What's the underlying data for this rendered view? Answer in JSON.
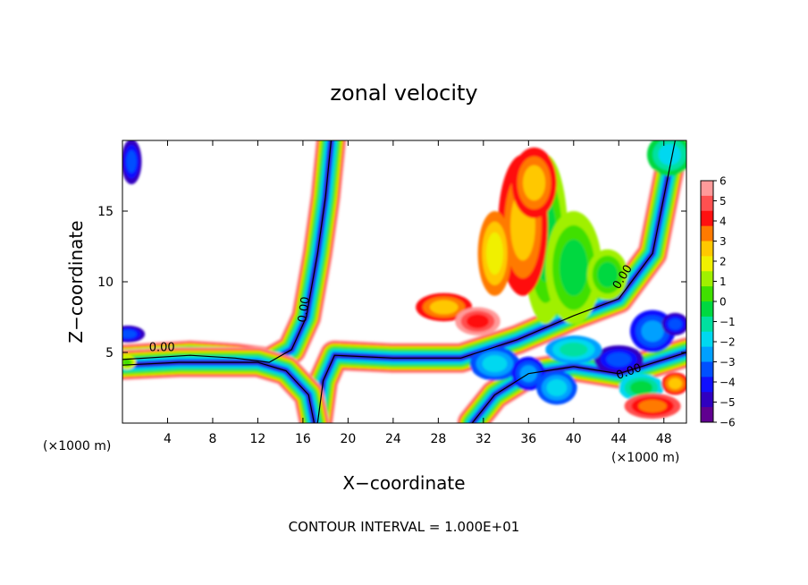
{
  "chart_data": {
    "type": "heatmap",
    "title": "zonal velocity",
    "xlabel": "X−coordinate",
    "ylabel": "Z−coordinate",
    "x_unit_left": "(×1000 m)",
    "x_unit_right": "(×1000 m)",
    "footer": "CONTOUR INTERVAL = 1.000E+01",
    "xlim": [
      0,
      50
    ],
    "ylim": [
      0,
      20
    ],
    "x_ticks": [
      4,
      8,
      12,
      16,
      20,
      24,
      28,
      32,
      36,
      40,
      44,
      48
    ],
    "x_tick_labels": [
      "4",
      "8",
      "12",
      "16",
      "20",
      "24",
      "28",
      "32",
      "36",
      "40",
      "44",
      "48"
    ],
    "y_ticks": [
      5,
      10,
      15
    ],
    "y_tick_labels": [
      "5",
      "10",
      "15"
    ],
    "grid": false,
    "colorbar": {
      "min": -6,
      "max": 6,
      "ticks": [
        6,
        5,
        4,
        3,
        2,
        1,
        0,
        -1,
        -2,
        -3,
        -4,
        -5,
        -6
      ],
      "tick_labels": [
        "6",
        "5",
        "4",
        "3",
        "2",
        "1",
        "0",
        "−1",
        "−2",
        "−3",
        "−4",
        "−5",
        "−6"
      ],
      "colors": [
        "#ff9a9a",
        "#ff5050",
        "#ff1010",
        "#ff7a00",
        "#ffc800",
        "#f0f000",
        "#a0f000",
        "#40e000",
        "#00d840",
        "#00e0a0",
        "#00d8f0",
        "#00a0ff",
        "#0050ff",
        "#1010ff",
        "#3000c0",
        "#600090"
      ]
    },
    "contour_labels": [
      "0.00",
      "0.00",
      "0.00",
      "0.00"
    ],
    "features": [
      {
        "type": "band",
        "value": 0,
        "path": [
          [
            0,
            4.5
          ],
          [
            6,
            4.8
          ],
          [
            10,
            4.6
          ],
          [
            13,
            4.3
          ],
          [
            15,
            5.2
          ],
          [
            16.3,
            7.5
          ],
          [
            17.3,
            12
          ],
          [
            18,
            16
          ],
          [
            18.5,
            20
          ]
        ]
      },
      {
        "type": "band",
        "value": 0,
        "path": [
          [
            17.3,
            0
          ],
          [
            17.8,
            3
          ],
          [
            18.8,
            4.8
          ],
          [
            24,
            4.6
          ],
          [
            30,
            4.6
          ],
          [
            35,
            5.9
          ],
          [
            40,
            7.6
          ],
          [
            44,
            8.8
          ],
          [
            47,
            12
          ],
          [
            49,
            20
          ]
        ]
      },
      {
        "type": "band",
        "value": 0,
        "path": [
          [
            0,
            4.1
          ],
          [
            5,
            4.3
          ],
          [
            12,
            4.3
          ],
          [
            14.5,
            3.7
          ],
          [
            16.5,
            2
          ],
          [
            17,
            0
          ]
        ]
      },
      {
        "type": "band",
        "value": 0,
        "path": [
          [
            31,
            0
          ],
          [
            33,
            2
          ],
          [
            36,
            3.5
          ],
          [
            40,
            4
          ],
          [
            44,
            3.5
          ],
          [
            48,
            4.5
          ],
          [
            50,
            5
          ]
        ]
      },
      {
        "type": "blob",
        "value": 0,
        "cx": 48.5,
        "cz": 19,
        "rx": 2.0,
        "rz": 1.5
      },
      {
        "type": "blob",
        "value": 1,
        "cx": 37.5,
        "cz": 13,
        "rx": 2.0,
        "rz": 6
      },
      {
        "type": "blob",
        "value": 1.5,
        "cx": 40,
        "cz": 11,
        "rx": 2.5,
        "rz": 4
      },
      {
        "type": "blob",
        "value": 4,
        "cx": 35.5,
        "cz": 14,
        "rx": 2.2,
        "rz": 5
      },
      {
        "type": "blob",
        "value": 3.5,
        "cx": 33,
        "cz": 12,
        "rx": 1.5,
        "rz": 3
      },
      {
        "type": "blob",
        "value": 4,
        "cx": 28.5,
        "cz": 8.2,
        "rx": 2.5,
        "rz": 1.0
      },
      {
        "type": "blob",
        "value": 4,
        "cx": 36.5,
        "cz": 17,
        "rx": 2.0,
        "rz": 2.5
      },
      {
        "type": "blob",
        "value": 5.5,
        "cx": 31.5,
        "cz": 7.2,
        "rx": 2.0,
        "rz": 1.0
      },
      {
        "type": "blob",
        "value": 1.5,
        "cx": 43,
        "cz": 10.5,
        "rx": 1.8,
        "rz": 1.8
      },
      {
        "type": "blob",
        "value": -3,
        "cx": 33,
        "cz": 4.2,
        "rx": 2.2,
        "rz": 1.2
      },
      {
        "type": "blob",
        "value": -4,
        "cx": 36,
        "cz": 3.5,
        "rx": 1.5,
        "rz": 1.2
      },
      {
        "type": "blob",
        "value": -5,
        "cx": 44,
        "cz": 4.5,
        "rx": 2.2,
        "rz": 1.0
      },
      {
        "type": "blob",
        "value": -2.5,
        "cx": 40,
        "cz": 5.2,
        "rx": 2.5,
        "rz": 1.0
      },
      {
        "type": "blob",
        "value": -3,
        "cx": 38.5,
        "cz": 2.5,
        "rx": 1.8,
        "rz": 1.2
      },
      {
        "type": "blob",
        "value": -4,
        "cx": 47,
        "cz": 6.5,
        "rx": 2.0,
        "rz": 1.5
      },
      {
        "type": "blob",
        "value": -5,
        "cx": 49,
        "cz": 7,
        "rx": 1.2,
        "rz": 0.8
      },
      {
        "type": "blob",
        "value": -1.5,
        "cx": 46,
        "cz": 2.5,
        "rx": 2.0,
        "rz": 1.0
      },
      {
        "type": "blob",
        "value": 5,
        "cx": 47,
        "cz": 1.2,
        "rx": 2.5,
        "rz": 0.9
      },
      {
        "type": "blob",
        "value": 4,
        "cx": 49,
        "cz": 2.8,
        "rx": 1.2,
        "rz": 0.8
      },
      {
        "type": "blob",
        "value": -5,
        "cx": 0.8,
        "cz": 18.5,
        "rx": 0.9,
        "rz": 1.6
      },
      {
        "type": "blob",
        "value": -5,
        "cx": 0.5,
        "cz": 6.3,
        "rx": 1.5,
        "rz": 0.6
      },
      {
        "type": "blob",
        "value": 2,
        "cx": 0.4,
        "cz": 4.3,
        "rx": 0.8,
        "rz": 0.5
      }
    ]
  }
}
